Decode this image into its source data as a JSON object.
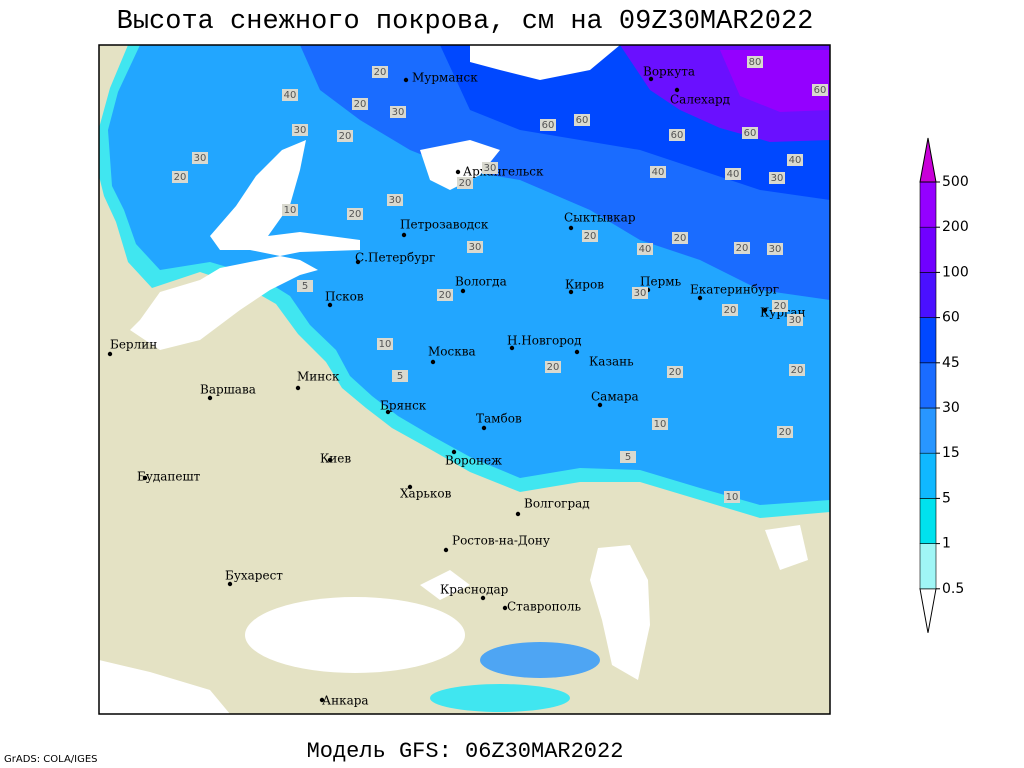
{
  "header": {
    "title": "Высота снежного покрова, см на 09Z30MAR2022"
  },
  "footer": {
    "model": "Модель GFS: 06Z30MAR2022",
    "credit": "GrADS: COLA/IGES"
  },
  "map": {
    "cities": [
      "Мурманск",
      "Воркута",
      "Салехард",
      "Архангельск",
      "Сыктывкар",
      "Петрозаводск",
      "С.Петербург",
      "Вологда",
      "Киров",
      "Пермь",
      "Екатеринбург",
      "Курган",
      "Псков",
      "Берлин",
      "Н.Новгород",
      "Казань",
      "Москва",
      "Минск",
      "Варшава",
      "Самара",
      "Брянск",
      "Тамбов",
      "Киев",
      "Воронеж",
      "Будапешт",
      "Харьков",
      "Волгоград",
      "Ростов-на-Дону",
      "Бухарест",
      "Краснодар",
      "Ставрополь",
      "Анкара"
    ],
    "contour_labels": [
      20,
      40,
      20,
      30,
      30,
      20,
      60,
      60,
      80,
      60,
      60,
      60,
      30,
      20,
      20,
      30,
      40,
      40,
      40,
      30,
      10,
      20,
      30,
      20,
      40,
      20,
      20,
      30,
      20,
      30,
      30,
      20,
      20,
      30,
      10,
      20,
      20,
      20,
      10,
      20,
      5,
      10,
      5,
      5
    ]
  },
  "legend": {
    "levels": [
      0.5,
      1,
      5,
      15,
      30,
      45,
      60,
      100,
      200,
      500
    ],
    "colors": [
      "#ffffff",
      "#a0f6f6",
      "#00e2ee",
      "#10b8ff",
      "#2896ff",
      "#1a6cff",
      "#0048ff",
      "#4a10ff",
      "#7000ff",
      "#9400ff",
      "#c800d8"
    ]
  }
}
